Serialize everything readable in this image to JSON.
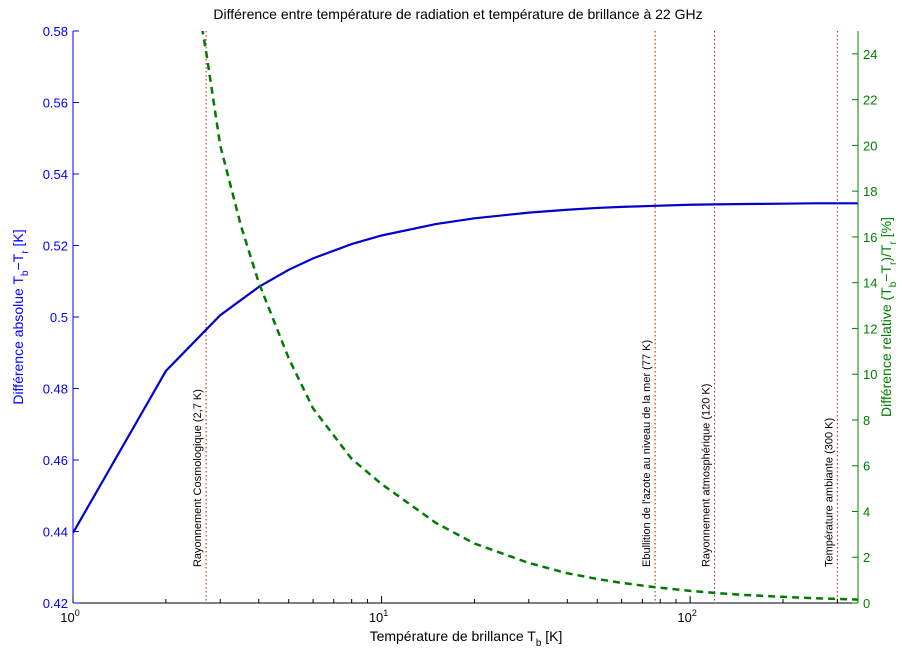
{
  "chart_data": {
    "type": "line",
    "title": "Différence entre température de radiation et température de brillance à 22 GHz",
    "xlabel": {
      "main": "Température de brillance T",
      "sub": "b",
      "tail": " [K]"
    },
    "ylabel_left": {
      "main": "Différence absolue T",
      "sub1": "b",
      "mid": "−T",
      "sub2": "r",
      "tail": " [K]"
    },
    "ylabel_right": {
      "main": "Différence relative (T",
      "sub1": "b",
      "mid": "−T",
      "sub2": "r",
      "mid2": ")/T",
      "sub3": "r",
      "tail": " [%]"
    },
    "x_scale": "log",
    "xlim": [
      1,
      350
    ],
    "x_ticks": [
      {
        "value": 1,
        "base": "10",
        "exp": "0"
      },
      {
        "value": 10,
        "base": "10",
        "exp": "1"
      },
      {
        "value": 100,
        "base": "10",
        "exp": "2"
      }
    ],
    "ylim_left": [
      0.42,
      0.58
    ],
    "y_ticks_left": [
      "0.42",
      "0.44",
      "0.46",
      "0.48",
      "0.5",
      "0.52",
      "0.54",
      "0.56",
      "0.58"
    ],
    "ylim_right": [
      0,
      25
    ],
    "y_ticks_right": [
      "0",
      "2",
      "4",
      "6",
      "8",
      "10",
      "12",
      "14",
      "16",
      "18",
      "20",
      "22",
      "24"
    ],
    "grid": false,
    "colors": {
      "left_axis": "#0000ff",
      "right_axis": "#008000",
      "absolute_series": "#0000cc",
      "relative_series": "#007a00",
      "markers": "#dd0000"
    },
    "series": [
      {
        "axis": "left",
        "style": "solid",
        "x": [
          1,
          2,
          3,
          4,
          5,
          6,
          8,
          10,
          15,
          20,
          30,
          40,
          50,
          60,
          77,
          100,
          120,
          150,
          200,
          250,
          300,
          350
        ],
        "values": [
          0.4396,
          0.4849,
          0.5005,
          0.5084,
          0.5132,
          0.5164,
          0.5204,
          0.5228,
          0.526,
          0.5276,
          0.5292,
          0.53,
          0.5305,
          0.5308,
          0.5311,
          0.5314,
          0.5315,
          0.5316,
          0.5317,
          0.5318,
          0.5318,
          0.5318
        ]
      },
      {
        "axis": "right",
        "style": "dashed",
        "x": [
          2.5,
          2.7,
          3,
          3.5,
          4,
          5,
          6,
          8,
          10,
          15,
          20,
          30,
          40,
          50,
          60,
          77,
          100,
          120,
          150,
          200,
          250,
          300,
          350
        ],
        "values": [
          26.7,
          24.1,
          20.0,
          16.5,
          14.0,
          10.7,
          8.5,
          6.3,
          5.2,
          3.5,
          2.6,
          1.75,
          1.3,
          1.05,
          0.88,
          0.69,
          0.53,
          0.44,
          0.35,
          0.27,
          0.21,
          0.18,
          0.15
        ]
      }
    ],
    "markers": [
      {
        "x": 2.7,
        "label": "Rayonnement Cosmologique (2,7 K)"
      },
      {
        "x": 77,
        "label": "Ebullition de l'azote au niveau de la mer (77 K)"
      },
      {
        "x": 120,
        "label": "Rayonnement atmosphérique (120 K)"
      },
      {
        "x": 300,
        "label": "Température ambiante (300 K)"
      }
    ]
  }
}
